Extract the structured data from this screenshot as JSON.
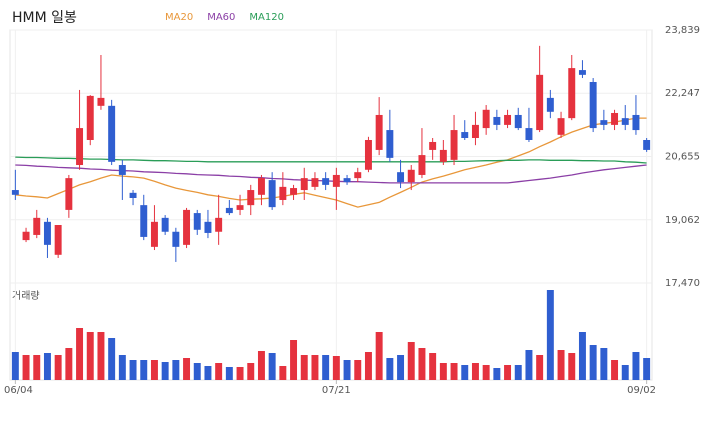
{
  "chart_data": {
    "type": "candlestick",
    "title": "HMM 일봉",
    "volume_label": "거래량",
    "up_color": "#e5323e",
    "down_color": "#2f5ed0",
    "grid": true,
    "ylim": [
      17470,
      23839
    ],
    "yticks": [
      {
        "value": 17470,
        "label": "17,470"
      },
      {
        "value": 19062,
        "label": "19,062"
      },
      {
        "value": 20655,
        "label": "20,655"
      },
      {
        "value": 22247,
        "label": "22,247"
      },
      {
        "value": 23839,
        "label": "23,839"
      }
    ],
    "categories": [
      "06/04",
      null,
      null,
      null,
      null,
      null,
      null,
      null,
      null,
      null,
      null,
      null,
      null,
      null,
      null,
      null,
      null,
      null,
      null,
      null,
      null,
      null,
      null,
      null,
      null,
      null,
      null,
      null,
      null,
      null,
      "07/21",
      null,
      null,
      null,
      null,
      null,
      null,
      null,
      null,
      null,
      null,
      null,
      null,
      null,
      null,
      null,
      null,
      null,
      null,
      null,
      null,
      null,
      null,
      null,
      null,
      null,
      null,
      null,
      null,
      "09/02"
    ],
    "ohlc": [
      [
        19810,
        20320,
        19560,
        19690
      ],
      [
        18550,
        18860,
        18500,
        18760
      ],
      [
        18680,
        19310,
        18600,
        19110
      ],
      [
        19010,
        19110,
        18100,
        18430
      ],
      [
        18180,
        18930,
        18100,
        18930
      ],
      [
        19310,
        20190,
        19110,
        20110
      ],
      [
        20440,
        22330,
        20320,
        21370
      ],
      [
        21070,
        22200,
        20940,
        22180
      ],
      [
        21930,
        23210,
        21830,
        22130
      ],
      [
        21930,
        22080,
        20440,
        20520
      ],
      [
        20440,
        20570,
        19560,
        20190
      ],
      [
        19740,
        19810,
        19430,
        19610
      ],
      [
        19430,
        19690,
        18550,
        18630
      ],
      [
        18380,
        19430,
        18300,
        19010
      ],
      [
        19110,
        19180,
        18680,
        18760
      ],
      [
        18760,
        18860,
        18000,
        18380
      ],
      [
        18430,
        19360,
        18350,
        19310
      ],
      [
        19230,
        19310,
        18680,
        18810
      ],
      [
        19010,
        19310,
        18600,
        18730
      ],
      [
        18760,
        19690,
        18430,
        19110
      ],
      [
        19360,
        19560,
        19180,
        19230
      ],
      [
        19310,
        19690,
        19180,
        19430
      ],
      [
        19430,
        19940,
        19180,
        19810
      ],
      [
        19690,
        20190,
        19430,
        20110
      ],
      [
        20060,
        20260,
        19310,
        19380
      ],
      [
        19560,
        20260,
        19430,
        19890
      ],
      [
        19690,
        19940,
        19560,
        19860
      ],
      [
        19810,
        20370,
        19560,
        20110
      ],
      [
        19890,
        20260,
        19810,
        20110
      ],
      [
        20110,
        20260,
        19810,
        19940
      ],
      [
        19890,
        20370,
        19310,
        20190
      ],
      [
        20110,
        20190,
        19940,
        20010
      ],
      [
        20110,
        20370,
        20010,
        20260
      ],
      [
        20320,
        21150,
        20260,
        21070
      ],
      [
        20820,
        22150,
        20690,
        21700
      ],
      [
        21320,
        21830,
        20520,
        20620
      ],
      [
        20260,
        20570,
        19860,
        20010
      ],
      [
        20010,
        20440,
        19810,
        20320
      ],
      [
        20190,
        21370,
        20110,
        20690
      ],
      [
        20820,
        21120,
        20570,
        21020
      ],
      [
        20520,
        21070,
        20440,
        20820
      ],
      [
        20570,
        21700,
        20440,
        21320
      ],
      [
        21270,
        21570,
        21070,
        21120
      ],
      [
        21120,
        21780,
        20940,
        21450
      ],
      [
        21370,
        21950,
        21200,
        21830
      ],
      [
        21650,
        21830,
        21320,
        21450
      ],
      [
        21450,
        21830,
        21370,
        21700
      ],
      [
        21700,
        21880,
        21320,
        21370
      ],
      [
        21370,
        21880,
        21020,
        21070
      ],
      [
        21320,
        23440,
        21270,
        22710
      ],
      [
        22130,
        22330,
        21620,
        21780
      ],
      [
        21200,
        21780,
        21120,
        21620
      ],
      [
        21620,
        23210,
        21570,
        22880
      ],
      [
        22830,
        23080,
        22630,
        22710
      ],
      [
        22530,
        22630,
        21270,
        21370
      ],
      [
        21570,
        21830,
        21320,
        21450
      ],
      [
        21450,
        21830,
        21320,
        21750
      ],
      [
        21620,
        21950,
        21320,
        21450
      ],
      [
        21700,
        22200,
        21200,
        21320
      ],
      [
        21070,
        21120,
        20770,
        20820
      ]
    ],
    "volume": [
      28,
      25,
      25,
      27,
      25,
      32,
      52,
      48,
      48,
      42,
      25,
      20,
      20,
      20,
      18,
      20,
      22,
      17,
      14,
      17,
      13,
      13,
      17,
      29,
      27,
      14,
      40,
      25,
      25,
      25,
      24,
      20,
      20,
      28,
      48,
      22,
      25,
      38,
      32,
      27,
      17,
      17,
      15,
      17,
      15,
      12,
      15,
      15,
      30,
      25,
      90,
      30,
      27,
      48,
      35,
      32,
      20,
      15,
      28,
      22
    ],
    "series": [
      {
        "name": "MA20",
        "color": "#e8973a",
        "values": [
          19690,
          19660,
          19640,
          19610,
          19720,
          19830,
          19940,
          20020,
          20110,
          20190,
          20160,
          20140,
          20110,
          20030,
          19940,
          19860,
          19800,
          19750,
          19690,
          19650,
          19600,
          19560,
          19580,
          19590,
          19610,
          19650,
          19700,
          19740,
          19680,
          19620,
          19560,
          19470,
          19380,
          19440,
          19500,
          19630,
          19750,
          19880,
          20010,
          20090,
          20160,
          20240,
          20320,
          20380,
          20440,
          20510,
          20570,
          20670,
          20770,
          20900,
          21020,
          21150,
          21270,
          21360,
          21450,
          21490,
          21520,
          21570,
          21620,
          21620
        ]
      },
      {
        "name": "MA60",
        "color": "#8b3fa6",
        "values": [
          20440,
          20430,
          20410,
          20400,
          20380,
          20370,
          20360,
          20340,
          20330,
          20310,
          20300,
          20290,
          20270,
          20260,
          20250,
          20230,
          20220,
          20200,
          20190,
          20180,
          20160,
          20150,
          20130,
          20120,
          20100,
          20090,
          20070,
          20060,
          20050,
          20040,
          20030,
          20020,
          20020,
          20010,
          20000,
          19990,
          19990,
          19990,
          19990,
          19990,
          19990,
          19990,
          19990,
          19990,
          19990,
          19990,
          19990,
          20020,
          20050,
          20080,
          20110,
          20150,
          20190,
          20240,
          20280,
          20320,
          20350,
          20380,
          20410,
          20440
        ]
      },
      {
        "name": "MA120",
        "color": "#2a9d58",
        "values": [
          20640,
          20630,
          20630,
          20620,
          20610,
          20610,
          20600,
          20590,
          20590,
          20580,
          20570,
          20570,
          20560,
          20550,
          20550,
          20540,
          20530,
          20530,
          20520,
          20520,
          20520,
          20520,
          20520,
          20520,
          20520,
          20520,
          20520,
          20520,
          20520,
          20520,
          20520,
          20520,
          20520,
          20520,
          20520,
          20520,
          20520,
          20520,
          20520,
          20520,
          20520,
          20530,
          20530,
          20540,
          20550,
          20550,
          20560,
          20560,
          20570,
          20570,
          20560,
          20560,
          20560,
          20550,
          20550,
          20540,
          20540,
          20520,
          20510,
          20490
        ]
      }
    ]
  }
}
